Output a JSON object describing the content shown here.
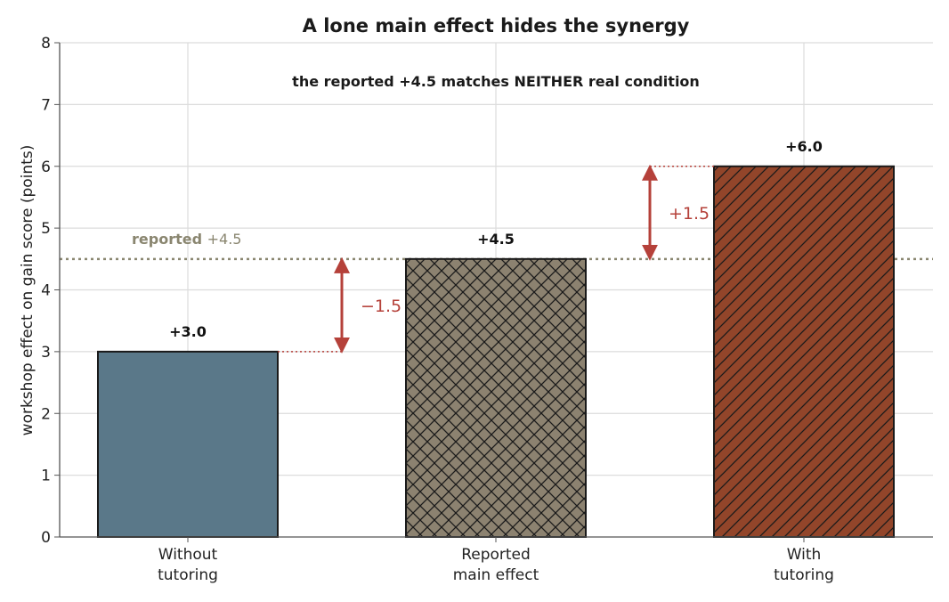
{
  "chart_data": {
    "type": "bar",
    "title": "A lone main effect hides the synergy",
    "subtitle": "the reported +4.5 matches NEITHER real condition",
    "ylabel": "workshop effect on gain score (points)",
    "xlabel": "",
    "ylim": [
      0,
      8
    ],
    "yticks": [
      "0",
      "1",
      "2",
      "3",
      "4",
      "5",
      "6",
      "7",
      "8"
    ],
    "categories": [
      [
        "Without",
        "tutoring"
      ],
      [
        "Reported",
        "main effect"
      ],
      [
        "With",
        "tutoring"
      ]
    ],
    "values": [
      3.0,
      4.5,
      6.0
    ],
    "data_labels": [
      "+3.0",
      "+4.5",
      "+6.0"
    ],
    "bar_colors": [
      "#5a7889",
      "#8c8270",
      "#92452a"
    ],
    "bar_patterns": [
      "solid",
      "crosshatch",
      "diagonal"
    ],
    "grid": true,
    "reference_line": {
      "value": 4.5,
      "label_bold": "reported",
      "label_rest": "+4.5",
      "color": "#8a8670"
    },
    "annotations": [
      {
        "from": 4.5,
        "to": 3.0,
        "label": "−1.5",
        "color": "#b5413a"
      },
      {
        "from": 4.5,
        "to": 6.0,
        "label": "+1.5",
        "color": "#b5413a"
      }
    ]
  }
}
